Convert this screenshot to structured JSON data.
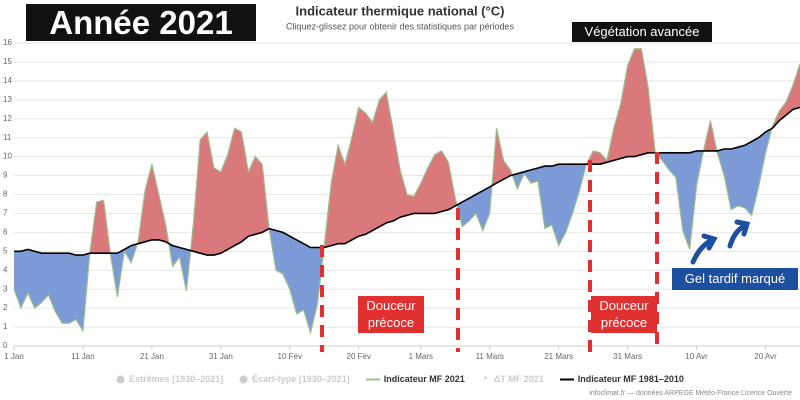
{
  "chart_data": {
    "type": "line",
    "title": "Indicateur thermique national (°C)",
    "subtitle": "Cliquez-glissez pour obtenir des statistiques par périodes",
    "x": [
      0,
      1,
      2,
      3,
      4,
      5,
      6,
      7,
      8,
      9,
      10,
      11,
      12,
      13,
      14,
      15,
      16,
      17,
      18,
      19,
      20,
      21,
      22,
      23,
      24,
      25,
      26,
      27,
      28,
      29,
      30,
      31,
      32,
      33,
      34,
      35,
      36,
      37,
      38,
      39,
      40,
      41,
      42,
      43,
      44,
      45,
      46,
      47,
      48,
      49,
      50,
      51,
      52,
      53,
      54,
      55,
      56,
      57,
      58,
      59,
      60,
      61,
      62,
      63,
      64,
      65,
      66,
      67,
      68,
      69,
      70,
      71,
      72,
      73,
      74,
      75,
      76,
      77,
      78,
      79,
      80,
      81,
      82,
      83,
      84,
      85,
      86,
      87,
      88,
      89,
      90,
      91,
      92,
      93,
      94,
      95,
      96,
      97,
      98,
      99,
      100,
      101,
      102,
      103,
      104,
      105,
      106,
      107,
      108,
      109,
      110,
      111,
      112,
      113,
      114
    ],
    "series": [
      {
        "name": "Indicateur MF 2021",
        "color": "#9cc08a",
        "values": [
          3.0,
          2.0,
          2.8,
          2.0,
          2.3,
          2.7,
          1.8,
          1.2,
          1.2,
          1.4,
          0.8,
          4.9,
          7.6,
          7.7,
          4.8,
          2.6,
          5.0,
          4.4,
          5.5,
          8.2,
          9.6,
          8.0,
          6.4,
          4.2,
          4.7,
          2.9,
          6.4,
          10.9,
          11.3,
          9.4,
          9.2,
          10.1,
          11.5,
          11.3,
          9.2,
          10.0,
          9.6,
          6.2,
          4.0,
          3.8,
          3.0,
          1.7,
          1.9,
          0.7,
          2.2,
          5.3,
          8.6,
          10.6,
          9.6,
          11.0,
          12.6,
          12.3,
          11.8,
          13.0,
          13.4,
          11.4,
          9.3,
          8.0,
          7.9,
          8.6,
          9.4,
          10.1,
          10.3,
          9.7,
          7.8,
          6.3,
          6.6,
          7.0,
          6.1,
          7.0,
          11.5,
          9.8,
          9.3,
          8.3,
          9.1,
          8.6,
          8.7,
          6.2,
          6.4,
          5.3,
          6.0,
          7.0,
          8.2,
          9.6,
          10.3,
          10.2,
          9.8,
          11.5,
          12.8,
          14.8,
          15.7,
          15.7,
          13.6,
          10.2,
          9.8,
          9.3,
          8.9,
          6.1,
          5.1,
          8.5,
          10.3,
          11.9,
          10.2,
          9.0,
          7.2,
          7.4,
          7.3,
          6.9,
          8.4,
          10.2,
          11.6,
          12.4,
          12.9,
          13.8,
          14.9
        ]
      },
      {
        "name": "Indicateur MF 1981–2010",
        "color": "#000000",
        "values": [
          5.0,
          5.0,
          5.1,
          5.0,
          4.9,
          4.9,
          4.9,
          4.9,
          4.9,
          4.8,
          4.8,
          4.9,
          4.9,
          4.9,
          4.9,
          4.9,
          5.1,
          5.3,
          5.4,
          5.5,
          5.6,
          5.6,
          5.5,
          5.3,
          5.2,
          5.1,
          5.0,
          4.9,
          4.8,
          4.8,
          4.9,
          5.1,
          5.3,
          5.5,
          5.8,
          5.9,
          6.0,
          6.2,
          6.1,
          6.0,
          5.8,
          5.6,
          5.4,
          5.2,
          5.2,
          5.2,
          5.3,
          5.4,
          5.4,
          5.6,
          5.8,
          5.9,
          6.1,
          6.3,
          6.5,
          6.6,
          6.8,
          6.9,
          7.0,
          7.0,
          7.0,
          7.0,
          7.1,
          7.2,
          7.4,
          7.6,
          7.8,
          8.0,
          8.2,
          8.4,
          8.6,
          8.8,
          9.0,
          9.1,
          9.2,
          9.3,
          9.4,
          9.5,
          9.5,
          9.6,
          9.6,
          9.6,
          9.6,
          9.6,
          9.6,
          9.6,
          9.7,
          9.8,
          9.9,
          10.0,
          10.0,
          10.1,
          10.2,
          10.2,
          10.2,
          10.2,
          10.2,
          10.2,
          10.2,
          10.3,
          10.3,
          10.3,
          10.3,
          10.4,
          10.4,
          10.5,
          10.6,
          10.8,
          11.0,
          11.3,
          11.5,
          11.9,
          12.2,
          12.5,
          12.6
        ]
      }
    ],
    "warm_color": "#d9797c",
    "cool_color": "#7b9ad6",
    "xlim": [
      0,
      114
    ],
    "ylim": [
      0,
      16
    ],
    "xticks": [
      {
        "value": 0,
        "label": "1 Jan"
      },
      {
        "value": 10,
        "label": "11 Jan"
      },
      {
        "value": 20,
        "label": "21 Jan"
      },
      {
        "value": 30,
        "label": "31 Jan"
      },
      {
        "value": 40,
        "label": "10 Fév"
      },
      {
        "value": 50,
        "label": "20 Fév"
      },
      {
        "value": 59,
        "label": "1 Mars"
      },
      {
        "value": 69,
        "label": "11 Mars"
      },
      {
        "value": 79,
        "label": "21 Mars"
      },
      {
        "value": 89,
        "label": "31 Mars"
      },
      {
        "value": 99,
        "label": "10 Avr"
      },
      {
        "value": 109,
        "label": "20 Avr"
      }
    ],
    "yticks": [
      0,
      1,
      2,
      3,
      4,
      5,
      6,
      7,
      8,
      9,
      10,
      11,
      12,
      13,
      14,
      15,
      16
    ],
    "grid": true,
    "legend_extra": [
      "Extrêmes [1930–2021]",
      "Écart-type [1930–2021]",
      "ΔT MF 2021"
    ],
    "annotations": [
      "Année 2021",
      "Végétation avancée",
      "Douceur précoce",
      "Douceur précoce",
      "Gel tardif marqué"
    ],
    "credit": "infoclimat.fr — données ARPEGE Météo-France Licence Ouverte"
  }
}
